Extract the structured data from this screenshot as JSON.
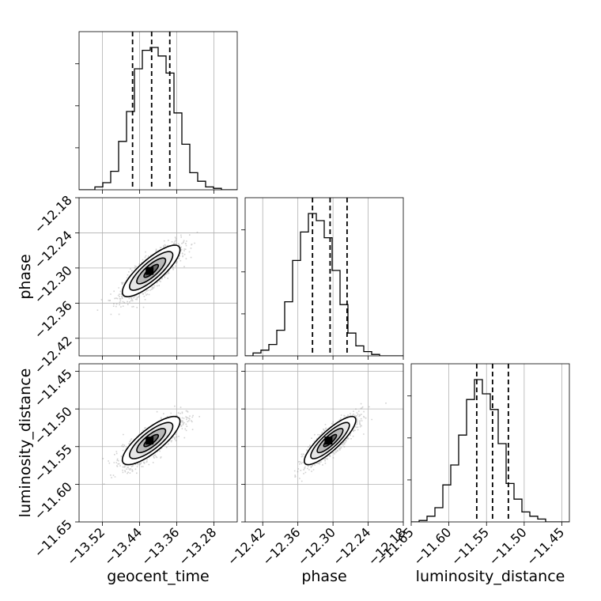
{
  "chart_data": {
    "type": "corner",
    "parameters": [
      "geocent_time",
      "phase",
      "luminosity_distance"
    ],
    "axis_labels": {
      "geocent_time": "geocent_time",
      "phase": "phase",
      "luminosity_distance": "luminosity_distance"
    },
    "ranges": {
      "geocent_time": [
        -13.57,
        -13.23
      ],
      "phase": [
        -12.45,
        -12.18
      ],
      "luminosity_distance": [
        -11.65,
        -11.44
      ]
    },
    "ticks": {
      "geocent_time": {
        "values": [
          -13.52,
          -13.44,
          -13.36,
          -13.28
        ],
        "labels": [
          "−13.52",
          "−13.44",
          "−13.36",
          "−13.28"
        ]
      },
      "phase": {
        "values": [
          -12.42,
          -12.36,
          -12.3,
          -12.24,
          -12.18
        ],
        "labels": [
          "−12.42",
          "−12.36",
          "−12.30",
          "−12.24",
          "−12.18"
        ]
      },
      "luminosity_distance": {
        "values": [
          -11.65,
          -11.6,
          -11.55,
          -11.5,
          -11.45
        ],
        "labels": [
          "−11.65",
          "−11.60",
          "−11.55",
          "−11.50",
          "−11.45"
        ]
      }
    },
    "quantiles": {
      "geocent_time": [
        -13.455,
        -13.414,
        -13.375
      ],
      "phase": [
        -12.335,
        -12.305,
        -12.276
      ],
      "luminosity_distance": [
        -11.563,
        -11.542,
        -11.521
      ]
    },
    "histograms": {
      "geocent_time": {
        "bin_edges": [
          -13.57,
          -13.553,
          -13.536,
          -13.519,
          -13.502,
          -13.485,
          -13.468,
          -13.451,
          -13.434,
          -13.417,
          -13.4,
          -13.383,
          -13.366,
          -13.349,
          -13.332,
          -13.315,
          -13.298,
          -13.281,
          -13.264,
          -13.247,
          -13.23
        ],
        "counts": [
          0.0,
          0.0,
          0.02,
          0.05,
          0.13,
          0.34,
          0.55,
          0.85,
          0.98,
          1.0,
          0.94,
          0.82,
          0.54,
          0.32,
          0.12,
          0.06,
          0.02,
          0.01,
          0.0,
          0.0
        ]
      },
      "phase": {
        "bin_edges": [
          -12.45,
          -12.4365,
          -12.423,
          -12.4095,
          -12.396,
          -12.3825,
          -12.369,
          -12.3555,
          -12.342,
          -12.3285,
          -12.315,
          -12.3015,
          -12.288,
          -12.2745,
          -12.261,
          -12.2475,
          -12.234,
          -12.2205,
          -12.207,
          -12.1935,
          -12.18
        ],
        "counts": [
          0.0,
          0.02,
          0.04,
          0.08,
          0.18,
          0.38,
          0.67,
          0.87,
          1.0,
          0.95,
          0.83,
          0.6,
          0.36,
          0.16,
          0.07,
          0.03,
          0.01,
          0.0,
          0.0,
          0.0
        ]
      },
      "luminosity_distance": {
        "bin_edges": [
          -11.65,
          -11.6395,
          -11.629,
          -11.6185,
          -11.608,
          -11.5975,
          -11.587,
          -11.5765,
          -11.566,
          -11.5555,
          -11.545,
          -11.5345,
          -11.524,
          -11.5135,
          -11.503,
          -11.4925,
          -11.482,
          -11.4715,
          -11.461,
          -11.4505,
          -11.44
        ],
        "counts": [
          0.0,
          0.01,
          0.04,
          0.1,
          0.26,
          0.4,
          0.61,
          0.86,
          1.0,
          0.9,
          0.79,
          0.55,
          0.27,
          0.16,
          0.07,
          0.04,
          0.02,
          0.0,
          0.0,
          0.0
        ]
      }
    },
    "joint": [
      {
        "x": "geocent_time",
        "y": "phase",
        "mean": [
          -13.415,
          -12.305
        ],
        "sd": [
          0.031,
          0.022
        ],
        "corr": 0.82
      },
      {
        "x": "geocent_time",
        "y": "luminosity_distance",
        "mean": [
          -13.415,
          -11.542
        ],
        "sd": [
          0.031,
          0.016
        ],
        "corr": 0.8
      },
      {
        "x": "phase",
        "y": "luminosity_distance",
        "mean": [
          -12.305,
          -11.542
        ],
        "sd": [
          0.022,
          0.016
        ],
        "corr": 0.85
      }
    ],
    "contour_levels_sigma": [
      0.5,
      1.0,
      1.5,
      2.0
    ],
    "grid": true,
    "colors": {
      "line": "#000000",
      "grid": "#b0b0b0",
      "points": "#7f7f7f"
    }
  }
}
